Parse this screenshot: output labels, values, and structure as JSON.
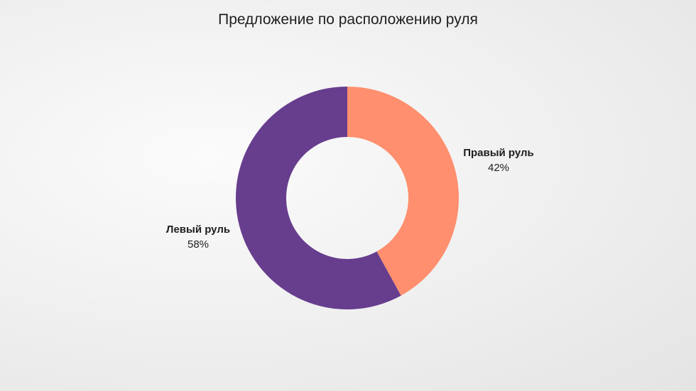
{
  "chart_data": {
    "type": "pie",
    "style": "donut",
    "title": "Предложение по расположению руля",
    "categories": [
      "Правый руль",
      "Левый руль"
    ],
    "values": [
      42,
      58
    ],
    "value_labels": [
      "42%",
      "58%"
    ],
    "colors": [
      "#ff8f6e",
      "#673d8e"
    ],
    "start": "12 o'clock",
    "direction": "clockwise",
    "legend": "none"
  }
}
